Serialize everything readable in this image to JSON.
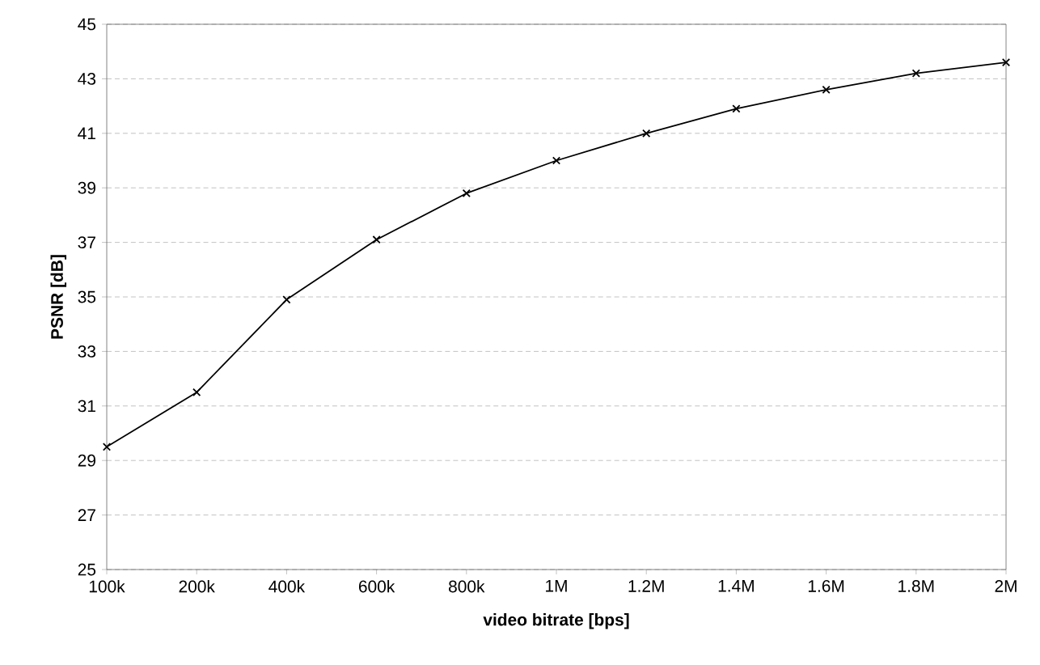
{
  "chart_data": {
    "type": "line",
    "xlabel": "video bitrate [bps]",
    "ylabel": "PSNR [dB]",
    "categories": [
      "100k",
      "200k",
      "400k",
      "600k",
      "800k",
      "1M",
      "1.2M",
      "1.4M",
      "1.6M",
      "1.8M",
      "2M"
    ],
    "series": [
      {
        "color": "#000000",
        "values": [
          29.5,
          31.5,
          34.9,
          37.1,
          38.8,
          40.0,
          41.0,
          41.9,
          42.6,
          43.2,
          43.6
        ]
      }
    ],
    "ylim": [
      25,
      45
    ],
    "yticks": [
      25,
      27,
      29,
      31,
      33,
      35,
      37,
      39,
      41,
      43,
      45
    ],
    "grid": "y",
    "marker": "cross",
    "line_style": "solid"
  }
}
